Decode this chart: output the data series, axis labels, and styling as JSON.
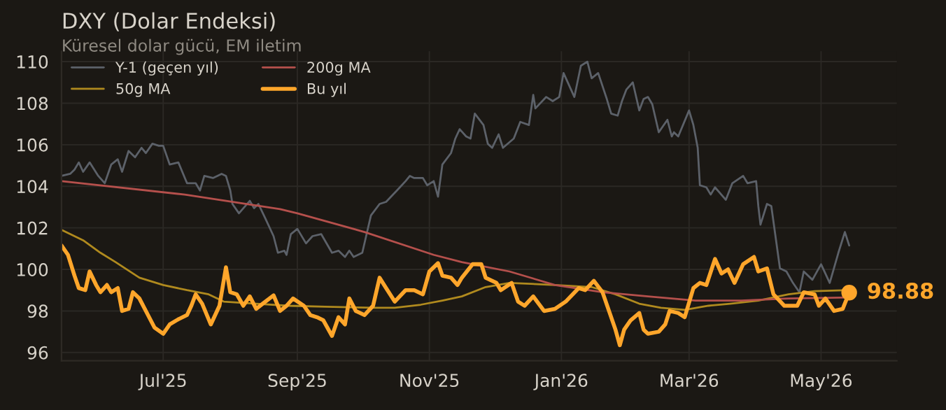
{
  "chart_data": {
    "type": "line",
    "title": "DXY (Dolar Endeksi)",
    "subtitle": "Küresel dolar gücü, EM iletim",
    "xlim": [
      "2025-05-15",
      "2026-06-05"
    ],
    "ylim": [
      95.6,
      110.5
    ],
    "xticks": [
      {
        "value": "2025-07-01",
        "label": "Jul'25"
      },
      {
        "value": "2025-09-01",
        "label": "Sep'25"
      },
      {
        "value": "2025-11-01",
        "label": "Nov'25"
      },
      {
        "value": "2026-01-01",
        "label": "Jan'26"
      },
      {
        "value": "2026-03-01",
        "label": "Mar'26"
      },
      {
        "value": "2026-05-01",
        "label": "May'26"
      }
    ],
    "yticks": [
      96,
      98,
      100,
      102,
      104,
      106,
      108,
      110
    ],
    "grid": true,
    "legend": "top left",
    "annotations": [
      {
        "text": "98.88",
        "x": "2026-05-14",
        "y": 98.88
      }
    ],
    "series": [
      {
        "name": "Y-1 (geçen yıl)",
        "color": "#5c6169",
        "x": [
          "2025-05-15",
          "2025-05-19",
          "2025-05-21",
          "2025-05-23",
          "2025-05-25",
          "2025-05-28",
          "2025-06-01",
          "2025-06-04",
          "2025-06-07",
          "2025-06-10",
          "2025-06-12",
          "2025-06-15",
          "2025-06-18",
          "2025-06-21",
          "2025-06-23",
          "2025-06-26",
          "2025-06-29",
          "2025-07-01",
          "2025-07-04",
          "2025-07-08",
          "2025-07-12",
          "2025-07-16",
          "2025-07-18",
          "2025-07-20",
          "2025-07-24",
          "2025-07-28",
          "2025-07-30",
          "2025-08-01",
          "2025-08-02",
          "2025-08-05",
          "2025-08-10",
          "2025-08-12",
          "2025-08-14",
          "2025-08-17",
          "2025-08-21",
          "2025-08-23",
          "2025-08-26",
          "2025-08-27",
          "2025-08-29",
          "2025-09-01",
          "2025-09-05",
          "2025-09-08",
          "2025-09-12",
          "2025-09-17",
          "2025-09-20",
          "2025-09-23",
          "2025-09-25",
          "2025-09-27",
          "2025-10-01",
          "2025-10-03",
          "2025-10-05",
          "2025-10-09",
          "2025-10-12",
          "2025-10-17",
          "2025-10-21",
          "2025-10-23",
          "2025-10-25",
          "2025-10-29",
          "2025-10-31",
          "2025-11-03",
          "2025-11-05",
          "2025-11-07",
          "2025-11-11",
          "2025-11-13",
          "2025-11-15",
          "2025-11-18",
          "2025-11-20",
          "2025-11-22",
          "2025-11-26",
          "2025-11-28",
          "2025-11-30",
          "2025-12-03",
          "2025-12-05",
          "2025-12-10",
          "2025-12-13",
          "2025-12-17",
          "2025-12-19",
          "2025-12-20",
          "2025-12-25",
          "2025-12-28",
          "2025-12-31",
          "2026-01-02",
          "2026-01-07",
          "2026-01-10",
          "2026-01-13",
          "2026-01-15",
          "2026-01-18",
          "2026-01-22",
          "2026-01-24",
          "2026-01-27",
          "2026-01-29",
          "2026-01-31",
          "2026-02-03",
          "2026-02-06",
          "2026-02-08",
          "2026-02-10",
          "2026-02-12",
          "2026-02-15",
          "2026-02-19",
          "2026-02-21",
          "2026-02-22",
          "2026-02-24",
          "2026-03-01",
          "2026-03-03",
          "2026-03-05",
          "2026-03-06",
          "2026-03-09",
          "2026-03-11",
          "2026-03-13",
          "2026-03-18",
          "2026-03-21",
          "2026-03-26",
          "2026-03-28",
          "2026-04-01",
          "2026-04-02",
          "2026-04-03",
          "2026-04-06",
          "2026-04-08",
          "2026-04-12",
          "2026-04-15",
          "2026-04-18",
          "2026-04-21",
          "2026-04-23",
          "2026-04-27",
          "2026-05-01",
          "2026-05-05",
          "2026-05-09",
          "2026-05-12",
          "2026-05-14"
        ],
        "values": [
          104.5,
          104.6,
          104.8,
          105.15,
          104.7,
          105.15,
          104.5,
          104.15,
          105.05,
          105.3,
          104.7,
          105.7,
          105.4,
          105.85,
          105.6,
          106.05,
          105.95,
          105.95,
          105.05,
          105.15,
          104.15,
          104.15,
          103.8,
          104.5,
          104.4,
          104.6,
          104.5,
          103.8,
          103.15,
          102.7,
          103.3,
          102.95,
          103.15,
          102.5,
          101.6,
          100.8,
          100.9,
          100.7,
          101.7,
          101.95,
          101.25,
          101.6,
          101.7,
          100.8,
          100.9,
          100.6,
          100.9,
          100.6,
          100.8,
          101.7,
          102.6,
          103.15,
          103.25,
          103.8,
          104.25,
          104.5,
          104.4,
          104.4,
          104.05,
          104.25,
          103.5,
          105.05,
          105.6,
          106.3,
          106.75,
          106.4,
          106.3,
          107.5,
          106.95,
          106.05,
          105.85,
          106.5,
          105.85,
          106.3,
          107.1,
          106.95,
          108.4,
          107.75,
          108.3,
          108.1,
          108.3,
          109.45,
          108.3,
          109.8,
          110.0,
          109.2,
          109.45,
          108.2,
          107.5,
          107.4,
          108.1,
          108.65,
          109.0,
          107.65,
          108.2,
          108.3,
          107.95,
          106.6,
          107.2,
          106.4,
          106.6,
          106.4,
          107.65,
          106.95,
          105.85,
          104.05,
          103.95,
          103.6,
          103.95,
          103.35,
          104.15,
          104.5,
          104.15,
          104.25,
          103.05,
          102.15,
          103.15,
          103.05,
          100.05,
          99.9,
          99.35,
          98.9,
          99.9,
          99.5,
          100.25,
          99.35,
          100.8,
          101.8,
          101.15
        ]
      },
      {
        "name": "50g MA",
        "color": "#b08a1e",
        "x": [
          "2025-05-15",
          "2025-05-25",
          "2025-06-02",
          "2025-06-09",
          "2025-06-20",
          "2025-07-01",
          "2025-07-12",
          "2025-07-22",
          "2025-07-29",
          "2025-08-13",
          "2025-08-28",
          "2025-09-14",
          "2025-10-06",
          "2025-10-16",
          "2025-10-28",
          "2025-11-07",
          "2025-11-16",
          "2025-11-27",
          "2025-12-08",
          "2025-12-29",
          "2026-01-15",
          "2026-01-26",
          "2026-02-06",
          "2026-02-16",
          "2026-02-27",
          "2026-03-10",
          "2026-03-20",
          "2026-04-02",
          "2026-04-16",
          "2026-04-28",
          "2026-05-14"
        ],
        "values": [
          101.9,
          101.4,
          100.8,
          100.35,
          99.6,
          99.25,
          99.0,
          98.8,
          98.45,
          98.35,
          98.25,
          98.2,
          98.15,
          98.15,
          98.3,
          98.5,
          98.7,
          99.15,
          99.35,
          99.25,
          99.15,
          98.8,
          98.35,
          98.15,
          98.05,
          98.25,
          98.35,
          98.5,
          98.8,
          98.95,
          99.0
        ]
      },
      {
        "name": "200g MA",
        "color": "#b5504c",
        "x": [
          "2025-05-15",
          "2025-07-11",
          "2025-08-24",
          "2025-09-01",
          "2025-10-02",
          "2025-11-03",
          "2025-11-16",
          "2025-12-08",
          "2025-12-29",
          "2026-01-20",
          "2026-02-10",
          "2026-03-04",
          "2026-03-25",
          "2026-04-16",
          "2026-05-14"
        ],
        "values": [
          104.25,
          103.6,
          102.9,
          102.7,
          101.8,
          100.7,
          100.35,
          99.9,
          99.25,
          98.9,
          98.7,
          98.5,
          98.5,
          98.6,
          98.65
        ]
      },
      {
        "name": "Bu yıl",
        "color": "#ffa62b",
        "x": [
          "2025-05-15",
          "2025-05-18",
          "2025-05-21",
          "2025-05-23",
          "2025-05-26",
          "2025-05-28",
          "2025-05-31",
          "2025-06-02",
          "2025-06-05",
          "2025-06-07",
          "2025-06-10",
          "2025-06-12",
          "2025-06-15",
          "2025-06-17",
          "2025-06-20",
          "2025-06-23",
          "2025-06-27",
          "2025-07-01",
          "2025-07-04",
          "2025-07-08",
          "2025-07-12",
          "2025-07-14",
          "2025-07-16",
          "2025-07-19",
          "2025-07-23",
          "2025-07-27",
          "2025-07-30",
          "2025-08-01",
          "2025-08-04",
          "2025-08-07",
          "2025-08-10",
          "2025-08-13",
          "2025-08-16",
          "2025-08-21",
          "2025-08-24",
          "2025-08-27",
          "2025-08-30",
          "2025-09-04",
          "2025-09-07",
          "2025-09-10",
          "2025-09-13",
          "2025-09-17",
          "2025-09-20",
          "2025-09-23",
          "2025-09-25",
          "2025-09-28",
          "2025-10-02",
          "2025-10-06",
          "2025-10-09",
          "2025-10-12",
          "2025-10-16",
          "2025-10-21",
          "2025-10-25",
          "2025-10-29",
          "2025-11-01",
          "2025-11-05",
          "2025-11-07",
          "2025-11-11",
          "2025-11-14",
          "2025-11-16",
          "2025-11-21",
          "2025-11-25",
          "2025-11-27",
          "2025-12-02",
          "2025-12-04",
          "2025-12-09",
          "2025-12-12",
          "2025-12-15",
          "2025-12-19",
          "2025-12-24",
          "2025-12-29",
          "2026-01-03",
          "2026-01-09",
          "2026-01-12",
          "2026-01-16",
          "2026-01-20",
          "2026-01-23",
          "2026-01-26",
          "2026-01-28",
          "2026-01-30",
          "2026-02-02",
          "2026-02-06",
          "2026-02-08",
          "2026-02-10",
          "2026-02-15",
          "2026-02-18",
          "2026-02-20",
          "2026-02-24",
          "2026-02-27",
          "2026-03-03",
          "2026-03-06",
          "2026-03-09",
          "2026-03-13",
          "2026-03-16",
          "2026-03-19",
          "2026-03-22",
          "2026-03-26",
          "2026-03-31",
          "2026-04-02",
          "2026-04-06",
          "2026-04-09",
          "2026-04-14",
          "2026-04-20",
          "2026-04-23",
          "2026-04-28",
          "2026-04-30",
          "2026-05-03",
          "2026-05-07",
          "2026-05-11",
          "2026-05-14"
        ],
        "values": [
          101.15,
          100.7,
          99.7,
          99.1,
          99.0,
          99.9,
          99.25,
          98.9,
          99.25,
          98.9,
          99.1,
          98.0,
          98.1,
          98.9,
          98.6,
          98.0,
          97.2,
          96.9,
          97.35,
          97.6,
          97.8,
          98.25,
          98.8,
          98.35,
          97.35,
          98.25,
          100.1,
          98.9,
          98.8,
          98.25,
          98.7,
          98.1,
          98.35,
          98.75,
          98.0,
          98.25,
          98.6,
          98.25,
          97.8,
          97.7,
          97.55,
          96.8,
          97.7,
          97.35,
          98.6,
          98.0,
          97.8,
          98.25,
          99.6,
          99.1,
          98.45,
          99.0,
          99.0,
          98.8,
          99.9,
          100.3,
          99.7,
          99.6,
          99.25,
          99.6,
          100.25,
          100.25,
          99.6,
          99.35,
          99.0,
          99.35,
          98.45,
          98.25,
          98.7,
          98.0,
          98.1,
          98.45,
          99.1,
          99.0,
          99.45,
          98.9,
          98.0,
          97.1,
          96.35,
          97.1,
          97.55,
          97.9,
          97.1,
          96.9,
          97.0,
          97.35,
          98.0,
          97.9,
          97.7,
          99.1,
          99.35,
          99.25,
          100.5,
          99.8,
          100.0,
          99.35,
          100.25,
          100.6,
          99.9,
          100.05,
          98.8,
          98.25,
          98.25,
          98.9,
          98.8,
          98.25,
          98.6,
          98.0,
          98.1,
          98.88
        ]
      }
    ]
  }
}
